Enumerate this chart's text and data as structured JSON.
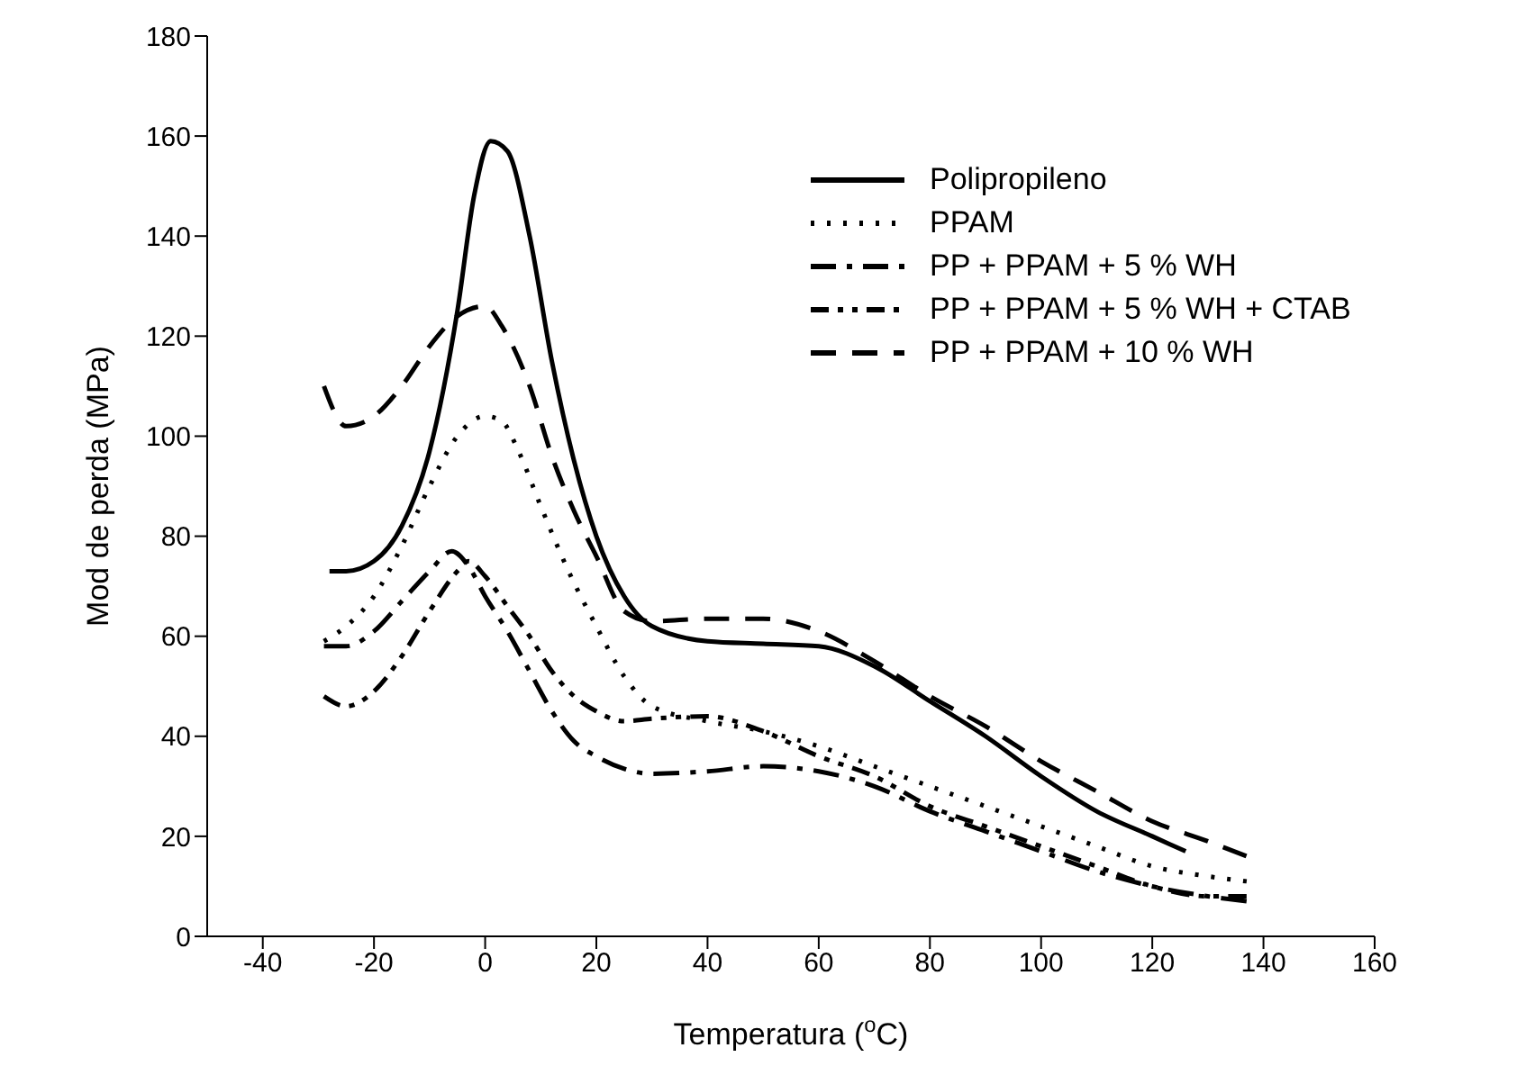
{
  "chart_data": {
    "type": "line",
    "xlabel": "Temperatura ($^{o}$C)",
    "ylabel": "Mod de perda (MPa)",
    "xlim": [
      -50,
      160
    ],
    "xticks": [
      -40,
      -20,
      0,
      20,
      40,
      60,
      80,
      100,
      120,
      140,
      160
    ],
    "ylim": [
      0,
      180
    ],
    "yticks": [
      0,
      20,
      40,
      60,
      80,
      100,
      120,
      140,
      160,
      180
    ],
    "grid": false,
    "legend": "top right",
    "marker": "none",
    "series": [
      {
        "name": "Polipropileno",
        "color": "#000000",
        "line_style": "solid",
        "x": [
          -28,
          -25,
          -20,
          -15,
          -10,
          -5,
          -2,
          1,
          4,
          8,
          12,
          16,
          20,
          25,
          30,
          40,
          50,
          60,
          70,
          80,
          90,
          100,
          110,
          120,
          126
        ],
        "values": [
          73,
          73,
          75,
          82,
          97,
          125,
          148,
          159,
          157,
          140,
          115,
          95,
          80,
          68,
          62,
          59,
          58.5,
          58,
          54,
          47,
          40,
          32,
          25,
          20,
          17
        ]
      },
      {
        "name": "PPAM",
        "color": "#000000",
        "line_style": "dotted",
        "x": [
          -29,
          -25,
          -20,
          -15,
          -10,
          -5,
          0,
          3,
          6,
          10,
          15,
          20,
          25,
          30,
          40,
          50,
          60,
          70,
          80,
          90,
          100,
          110,
          120,
          130,
          137
        ],
        "values": [
          59,
          62,
          68,
          78,
          90,
          100,
          104,
          103,
          97,
          86,
          73,
          62,
          52,
          46,
          43,
          41,
          38,
          34,
          30,
          26,
          22,
          18,
          14,
          12,
          11
        ]
      },
      {
        "name": "PP + PPAM + 5 % WH",
        "color": "#000000",
        "line_style": "dashdot",
        "x": [
          -29,
          -25,
          -20,
          -15,
          -10,
          -6,
          -3,
          0,
          4,
          8,
          12,
          16,
          20,
          25,
          30,
          40,
          50,
          60,
          70,
          80,
          90,
          100,
          110,
          120,
          130,
          137
        ],
        "values": [
          58,
          58,
          61,
          67,
          73,
          77,
          74,
          68,
          61,
          53,
          45,
          39,
          36,
          33.5,
          32.5,
          33,
          34,
          33,
          30,
          25,
          21,
          17,
          13,
          10,
          8,
          7
        ]
      },
      {
        "name": "PP + PPAM + 5 % WH + CTAB",
        "color": "#000000",
        "line_style": "dashdotdot",
        "x": [
          -29,
          -25,
          -20,
          -15,
          -10,
          -5,
          -3,
          0,
          4,
          8,
          12,
          16,
          20,
          25,
          30,
          40,
          50,
          60,
          70,
          80,
          90,
          100,
          110,
          120,
          130,
          137
        ],
        "values": [
          48,
          46,
          49,
          56,
          65,
          73,
          75,
          72,
          66,
          60,
          53,
          48,
          45,
          43,
          43.5,
          44,
          41,
          36,
          32,
          26,
          22,
          18,
          14,
          10,
          8,
          8
        ]
      },
      {
        "name": "PP + PPAM + 10 % WH",
        "color": "#000000",
        "line_style": "dashed",
        "x": [
          -29,
          -25,
          -20,
          -15,
          -10,
          -5,
          0,
          3,
          8,
          12,
          16,
          20,
          25,
          30,
          40,
          50,
          60,
          70,
          80,
          90,
          100,
          110,
          120,
          130,
          137
        ],
        "values": [
          110,
          102,
          104,
          110,
          118,
          124,
          126,
          122,
          110,
          96,
          85,
          76,
          65,
          63,
          63.5,
          63.5,
          61,
          55,
          48,
          42,
          35,
          29,
          23,
          19,
          16
        ]
      }
    ]
  }
}
